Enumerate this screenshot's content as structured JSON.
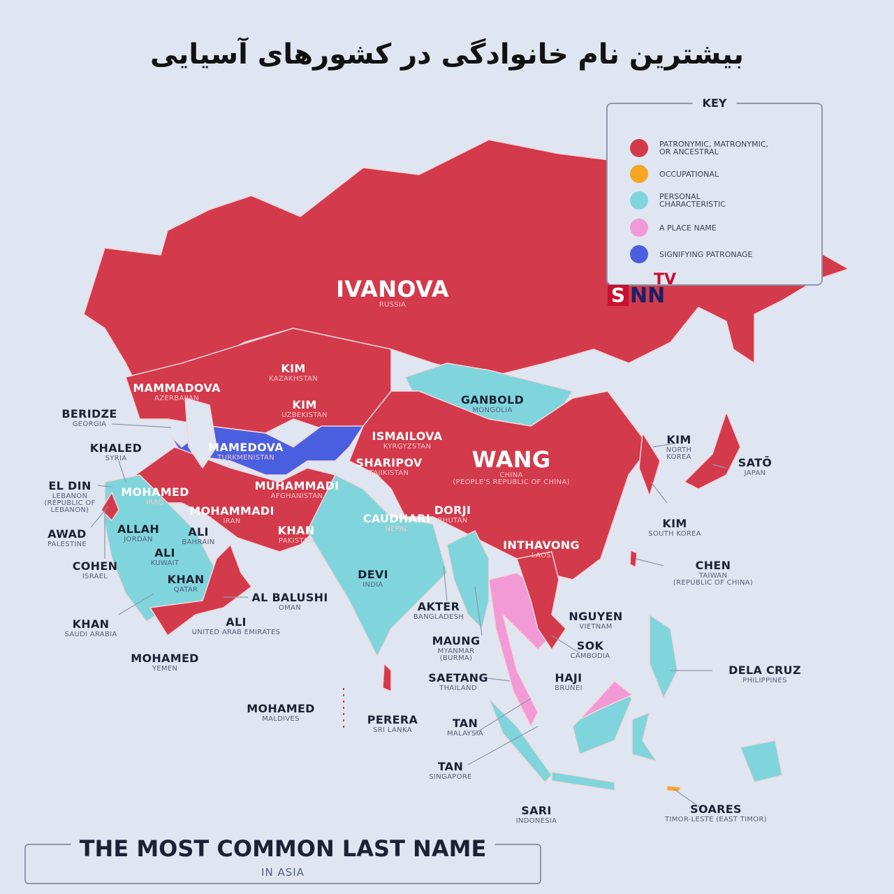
{
  "title": "بیشترین نام خانوادگی در کشورهای آسیایی",
  "colors": {
    "patronymic": "#d33a4b",
    "occupational": "#f5a623",
    "personal": "#80d5dc",
    "place": "#f29ad6",
    "patronage": "#4a5fe0",
    "background": "#dfe6f1"
  },
  "key": {
    "title": "KEY",
    "items": [
      {
        "label": "PATRONYMIC, MATRONYMIC,\nOR ANCESTRAL",
        "color": "#d33a4b"
      },
      {
        "label": "OCCUPATIONAL",
        "color": "#f5a623"
      },
      {
        "label": "PERSONAL\nCHARACTERISTIC",
        "color": "#80d5dc"
      },
      {
        "label": "A PLACE NAME",
        "color": "#f29ad6"
      },
      {
        "label": "SIGNIFYING PATRONAGE",
        "color": "#4a5fe0"
      }
    ]
  },
  "watermark": {
    "tv": "TV",
    "s": "S",
    "nn": "NN"
  },
  "labels": [
    {
      "name": "IVANOVA",
      "country": "RUSSIA"
    },
    {
      "name": "KIM",
      "country": "KAZAKHSTAN"
    },
    {
      "name": "MAMMADOVA",
      "country": "AZERBAIJAN"
    },
    {
      "name": "KIM",
      "country": "UZBEKISTAN"
    },
    {
      "name": "GANBOLD",
      "country": "MONGOLIA"
    },
    {
      "name": "BERIDZE",
      "country": "GEORGIA"
    },
    {
      "name": "MAMEDOVA",
      "country": "TURKMENISTAN"
    },
    {
      "name": "ISMAILOVA",
      "country": "KYRGYZSTAN"
    },
    {
      "name": "KHALED",
      "country": "SYRIA"
    },
    {
      "name": "SHARIPOV",
      "country": "TAJIKISTAN"
    },
    {
      "name": "WANG",
      "country": "CHINA\n(PEOPLE'S REPUBLIC OF CHINA)"
    },
    {
      "name": "KIM",
      "country": "NORTH\nKOREA"
    },
    {
      "name": "SATŌ",
      "country": "JAPAN"
    },
    {
      "name": "EL DIN",
      "country": "LEBANON\n(REPUBLIC OF\nLEBANON)"
    },
    {
      "name": "MOHAMED",
      "country": "IRAQ"
    },
    {
      "name": "MUHAMMADI",
      "country": "AFGHANISTAN"
    },
    {
      "name": "MOHAMMADI",
      "country": "IRAN"
    },
    {
      "name": "CAUDHARI",
      "country": "NEPAL"
    },
    {
      "name": "DORJI",
      "country": "BHUTAN"
    },
    {
      "name": "AWAD",
      "country": "PALESTINE"
    },
    {
      "name": "ALLAH",
      "country": "JORDAN"
    },
    {
      "name": "ALI",
      "country": "BAHRAIN"
    },
    {
      "name": "KHAN",
      "country": "PAKISTAN"
    },
    {
      "name": "KIM",
      "country": "SOUTH KOREA"
    },
    {
      "name": "ALI",
      "country": "KUWAIT"
    },
    {
      "name": "INTHAVONG",
      "country": "LAOS"
    },
    {
      "name": "CHEN",
      "country": "TAIWAN\n(REPUBLIC OF CHINA)"
    },
    {
      "name": "COHEN",
      "country": "ISRAEL"
    },
    {
      "name": "KHAN",
      "country": "QATAR"
    },
    {
      "name": "DEVI",
      "country": "INDIA"
    },
    {
      "name": "AL BALUSHI",
      "country": "OMAN"
    },
    {
      "name": "AKTER",
      "country": "BANGLADESH"
    },
    {
      "name": "NGUYEN",
      "country": "VIETNAM"
    },
    {
      "name": "KHAN",
      "country": "SAUDI ARABIA"
    },
    {
      "name": "ALI",
      "country": "UNITED ARAB EMIRATES"
    },
    {
      "name": "MAUNG",
      "country": "MYANMAR\n(BURMA)"
    },
    {
      "name": "SOK",
      "country": "CAMBODIA"
    },
    {
      "name": "MOHAMED",
      "country": "YEMEN"
    },
    {
      "name": "DELA CRUZ",
      "country": "PHILIPPINES"
    },
    {
      "name": "SAETANG",
      "country": "THAILAND"
    },
    {
      "name": "HAJI",
      "country": "BRUNEI"
    },
    {
      "name": "MOHAMED",
      "country": "MALDIVES"
    },
    {
      "name": "PERERA",
      "country": "SRI LANKA"
    },
    {
      "name": "TAN",
      "country": "MALAYSIA"
    },
    {
      "name": "TAN",
      "country": "SINGAPORE"
    },
    {
      "name": "SARI",
      "country": "INDONESIA"
    },
    {
      "name": "SOARES",
      "country": "TIMOR-LESTE (EAST TIMOR)"
    }
  ],
  "footer": {
    "title": "THE MOST COMMON LAST NAME",
    "subtitle": "IN ASIA"
  }
}
